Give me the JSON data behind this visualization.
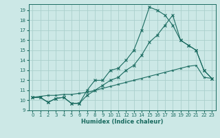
{
  "title": "",
  "xlabel": "Humidex (Indice chaleur)",
  "background_color": "#cce8e6",
  "grid_color": "#aad0cc",
  "line_color": "#1a6b60",
  "xlim": [
    -0.5,
    23.5
  ],
  "ylim": [
    9.0,
    19.6
  ],
  "xticks": [
    0,
    1,
    2,
    3,
    4,
    5,
    6,
    7,
    8,
    9,
    10,
    11,
    12,
    13,
    14,
    15,
    16,
    17,
    18,
    19,
    20,
    21,
    22,
    23
  ],
  "yticks": [
    9,
    10,
    11,
    12,
    13,
    14,
    15,
    16,
    17,
    18,
    19
  ],
  "line1_x": [
    0,
    1,
    2,
    3,
    4,
    5,
    6,
    7,
    8,
    9,
    10,
    11,
    12,
    13,
    14,
    15,
    16,
    17,
    18,
    19,
    20,
    21,
    22,
    23
  ],
  "line1_y": [
    10.3,
    10.3,
    9.8,
    10.2,
    10.3,
    9.7,
    9.7,
    11.0,
    12.0,
    12.0,
    13.0,
    13.2,
    14.0,
    15.0,
    17.0,
    19.3,
    19.0,
    18.5,
    17.5,
    16.0,
    15.5,
    15.0,
    13.0,
    12.2
  ],
  "line2_x": [
    0,
    1,
    2,
    3,
    4,
    5,
    6,
    7,
    8,
    9,
    10,
    11,
    12,
    13,
    14,
    15,
    16,
    17,
    18,
    19,
    20,
    21,
    22,
    23
  ],
  "line2_y": [
    10.3,
    10.3,
    9.8,
    10.2,
    10.3,
    9.7,
    9.7,
    10.5,
    11.0,
    11.5,
    12.0,
    12.3,
    13.0,
    13.5,
    14.5,
    15.8,
    16.5,
    17.5,
    18.5,
    16.0,
    15.5,
    15.0,
    13.0,
    12.2
  ],
  "line3_x": [
    0,
    1,
    2,
    3,
    4,
    5,
    6,
    7,
    8,
    9,
    10,
    11,
    12,
    13,
    14,
    15,
    16,
    17,
    18,
    19,
    20,
    21,
    22,
    23
  ],
  "line3_y": [
    10.3,
    10.4,
    10.5,
    10.5,
    10.6,
    10.6,
    10.7,
    10.8,
    11.0,
    11.2,
    11.4,
    11.6,
    11.8,
    12.0,
    12.2,
    12.4,
    12.6,
    12.8,
    13.0,
    13.2,
    13.4,
    13.5,
    12.3,
    12.2
  ],
  "tick_fontsize": 5.0,
  "xlabel_fontsize": 6.0,
  "linewidth": 0.8,
  "markersize": 2.5
}
